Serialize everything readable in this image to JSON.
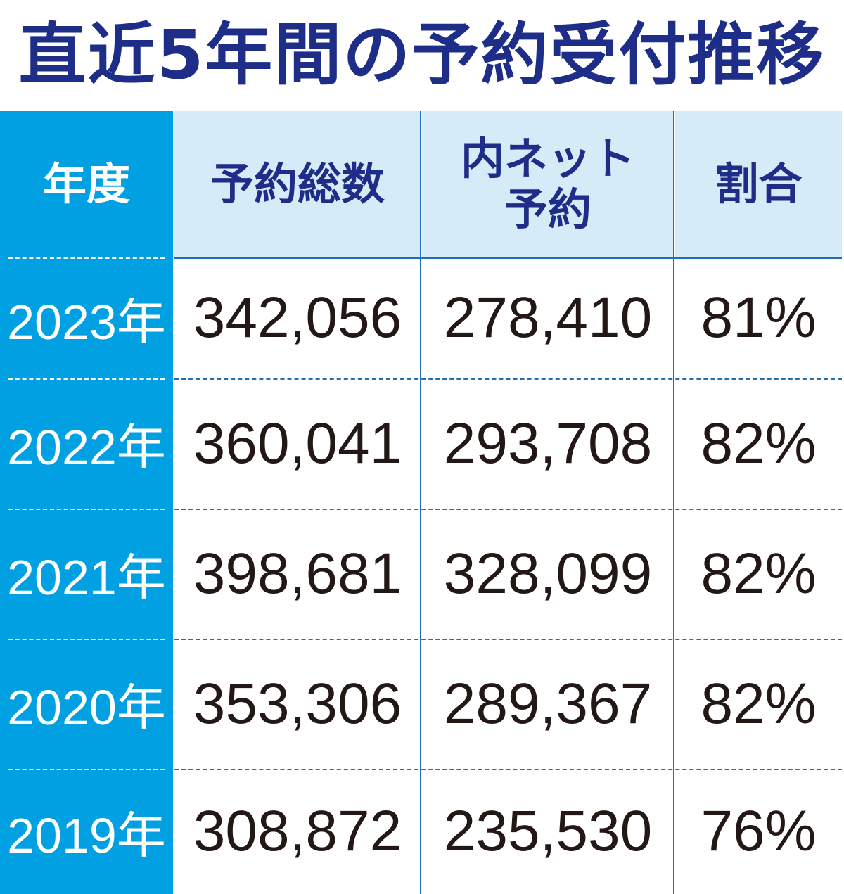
{
  "title": "直近5年間の予約受付推移",
  "chart_data": {
    "type": "table",
    "title": "直近5年間の予約受付推移",
    "columns": [
      "年度",
      "予約総数",
      "内ネット予約",
      "割合"
    ],
    "rows": [
      {
        "year": "2023年",
        "total": "342,056",
        "net": "278,410",
        "ratio": "81%"
      },
      {
        "year": "2022年",
        "total": "360,041",
        "net": "293,708",
        "ratio": "82%"
      },
      {
        "year": "2021年",
        "total": "398,681",
        "net": "328,099",
        "ratio": "82%"
      },
      {
        "year": "2020年",
        "total": "353,306",
        "net": "289,367",
        "ratio": "82%"
      },
      {
        "year": "2019年",
        "total": "308,872",
        "net": "235,530",
        "ratio": "76%"
      }
    ]
  },
  "colors": {
    "title": "#1d2d88",
    "year_column": "#00a0e3",
    "header_bg": "#d5ebf8",
    "lines": "#1f6fb5"
  }
}
